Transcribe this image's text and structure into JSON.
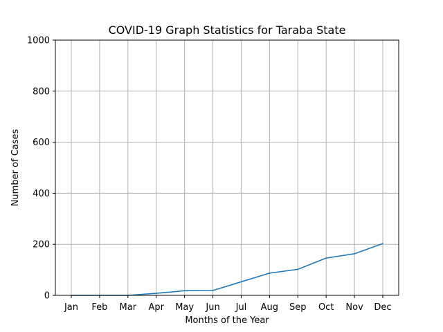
{
  "chart_data": {
    "type": "line",
    "title": "COVID-19 Graph Statistics for Taraba State",
    "xlabel": "Months of the Year",
    "ylabel": "Number of Cases",
    "categories": [
      "Jan",
      "Feb",
      "Mar",
      "Apr",
      "May",
      "Jun",
      "Jul",
      "Aug",
      "Sep",
      "Oct",
      "Nov",
      "Dec"
    ],
    "series": [
      {
        "values": [
          0,
          0,
          0,
          8,
          18,
          19,
          53,
          87,
          102,
          146,
          163,
          203
        ]
      }
    ],
    "ylim": [
      0,
      1000
    ],
    "yticks": [
      0,
      200,
      400,
      600,
      800,
      1000
    ],
    "grid": true,
    "line_color": "#1f77b4"
  }
}
